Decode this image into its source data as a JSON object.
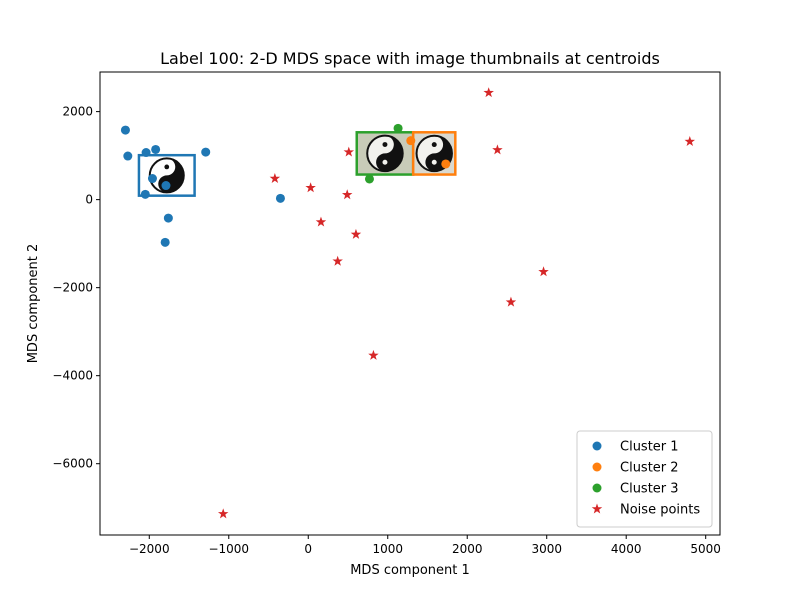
{
  "chart_data": {
    "type": "scatter",
    "title": "Label 100: 2-D MDS space with image thumbnails at centroids",
    "xlabel": "MDS component 1",
    "ylabel": "MDS component 2",
    "xlim": [
      -2620,
      5180
    ],
    "ylim": [
      -7620,
      2900
    ],
    "xticks": [
      -2000,
      -1000,
      0,
      1000,
      2000,
      3000,
      4000,
      5000
    ],
    "yticks": [
      2000,
      0,
      -2000,
      -4000,
      -6000
    ],
    "grid": false,
    "legend_position": "lower right",
    "series": [
      {
        "name": "Cluster 1",
        "marker": "circle",
        "color": "#1f77b4",
        "points": [
          [
            -2300,
            1580
          ],
          [
            -2270,
            990
          ],
          [
            -2040,
            1070
          ],
          [
            -1920,
            1140
          ],
          [
            -1290,
            1080
          ],
          [
            -1960,
            480
          ],
          [
            -2050,
            120
          ],
          [
            -1790,
            320
          ],
          [
            -1760,
            -420
          ],
          [
            -1800,
            -970
          ],
          [
            -350,
            30
          ]
        ]
      },
      {
        "name": "Cluster 2",
        "marker": "circle",
        "color": "#ff7f0e",
        "points": [
          [
            1290,
            1340
          ],
          [
            1730,
            810
          ]
        ]
      },
      {
        "name": "Cluster 3",
        "marker": "circle",
        "color": "#2ca02c",
        "points": [
          [
            1130,
            1620
          ],
          [
            770,
            470
          ]
        ]
      },
      {
        "name": "Noise points",
        "marker": "star",
        "color": "#d62728",
        "points": [
          [
            -420,
            480
          ],
          [
            30,
            270
          ],
          [
            490,
            110
          ],
          [
            510,
            1080
          ],
          [
            160,
            -510
          ],
          [
            600,
            -790
          ],
          [
            370,
            -1400
          ],
          [
            820,
            -3540
          ],
          [
            -1070,
            -7140
          ],
          [
            2270,
            2430
          ],
          [
            2380,
            1130
          ],
          [
            2550,
            -2330
          ],
          [
            2960,
            -1640
          ],
          [
            4800,
            1320
          ]
        ]
      }
    ],
    "thumbnails": [
      {
        "name": "Cluster 1",
        "color": "#1f77b4",
        "x": [
          -2130,
          -1430
        ],
        "y": [
          90,
          1010
        ],
        "background": "#ffffff"
      },
      {
        "name": "Cluster 3",
        "color": "#2ca02c",
        "x": [
          610,
          1320
        ],
        "y": [
          570,
          1530
        ],
        "background": "#c8cbb8"
      },
      {
        "name": "Cluster 2",
        "color": "#ff7f0e",
        "x": [
          1320,
          1850
        ],
        "y": [
          570,
          1530
        ],
        "background": "#dad9d0"
      }
    ]
  }
}
